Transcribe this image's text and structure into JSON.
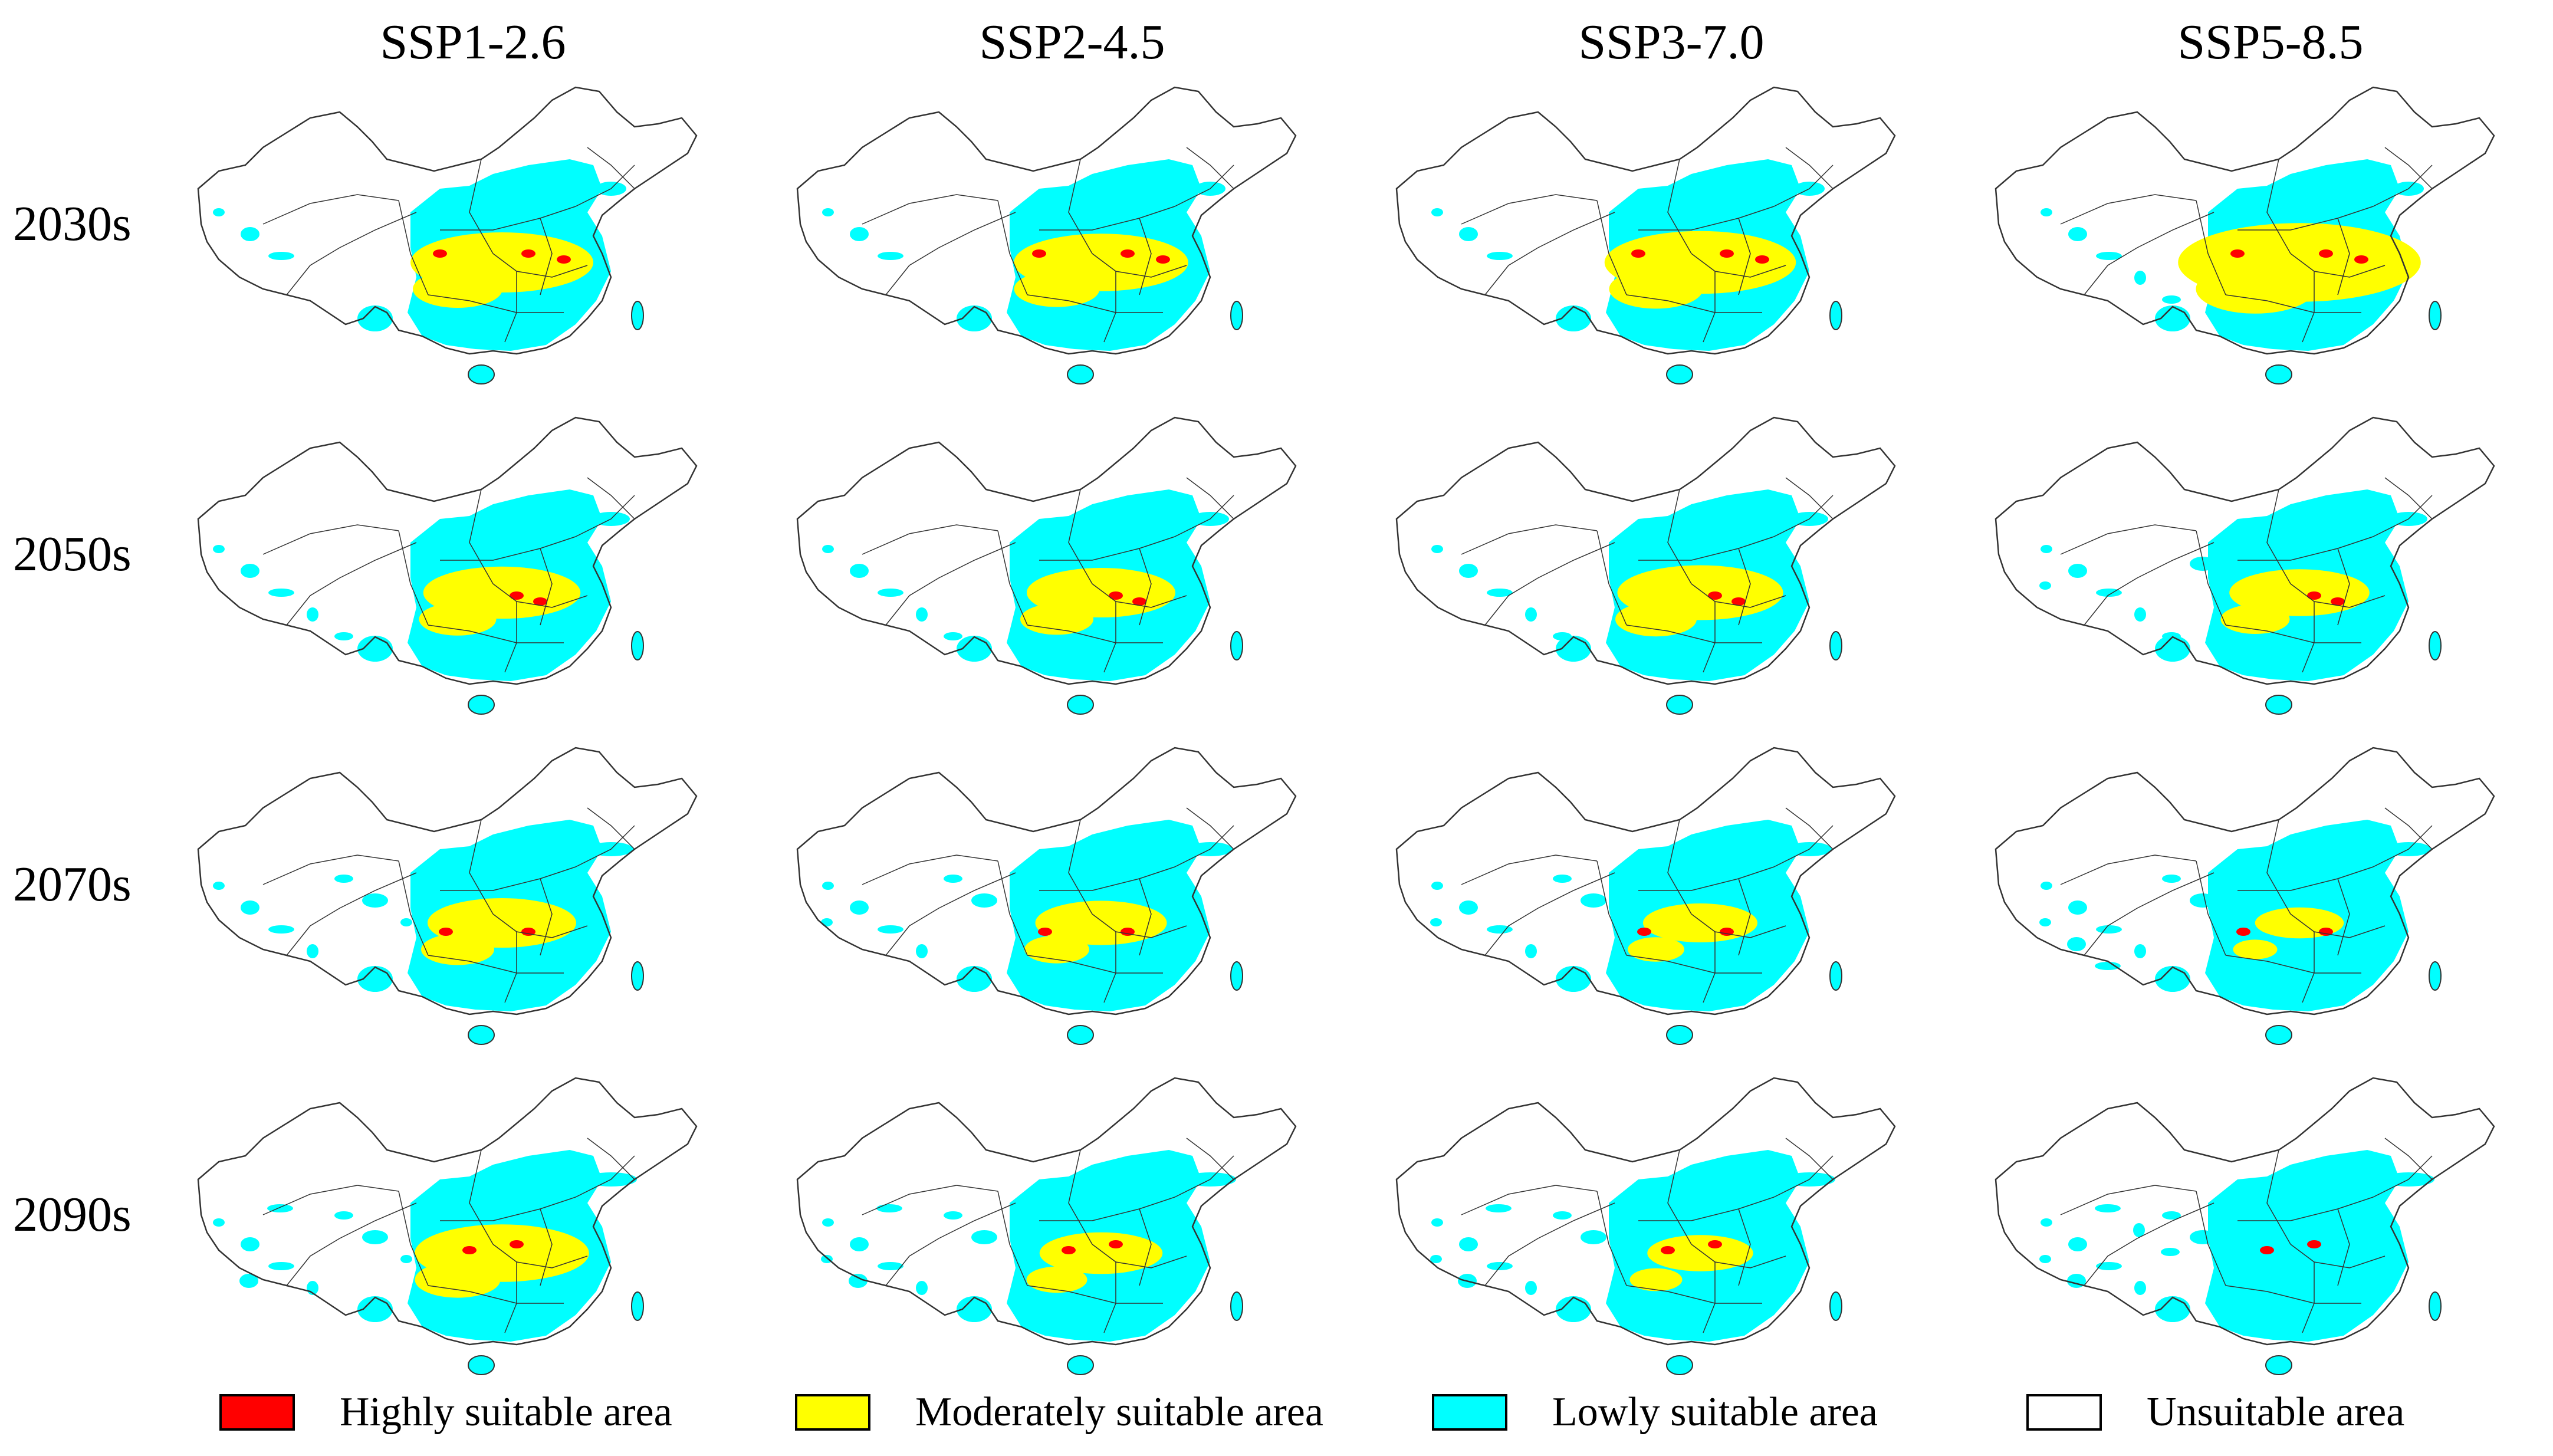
{
  "columns": [
    "SSP1-2.6",
    "SSP2-4.5",
    "SSP3-7.0",
    "SSP5-8.5"
  ],
  "rows": [
    "2030s",
    "2050s",
    "2070s",
    "2090s"
  ],
  "legend": [
    {
      "label": "Highly suitable area",
      "color": "#ff0000"
    },
    {
      "label": "Moderately suitable area",
      "color": "#ffff00"
    },
    {
      "label": "Lowly suitable area",
      "color": "#00ffff"
    },
    {
      "label": "Unsuitable area",
      "color": "#ffffff"
    }
  ],
  "colors": {
    "highly": "#ff0000",
    "moderately": "#ffff00",
    "lowly": "#00ffff",
    "unsuitable": "#ffffff",
    "border": "#333333"
  }
}
